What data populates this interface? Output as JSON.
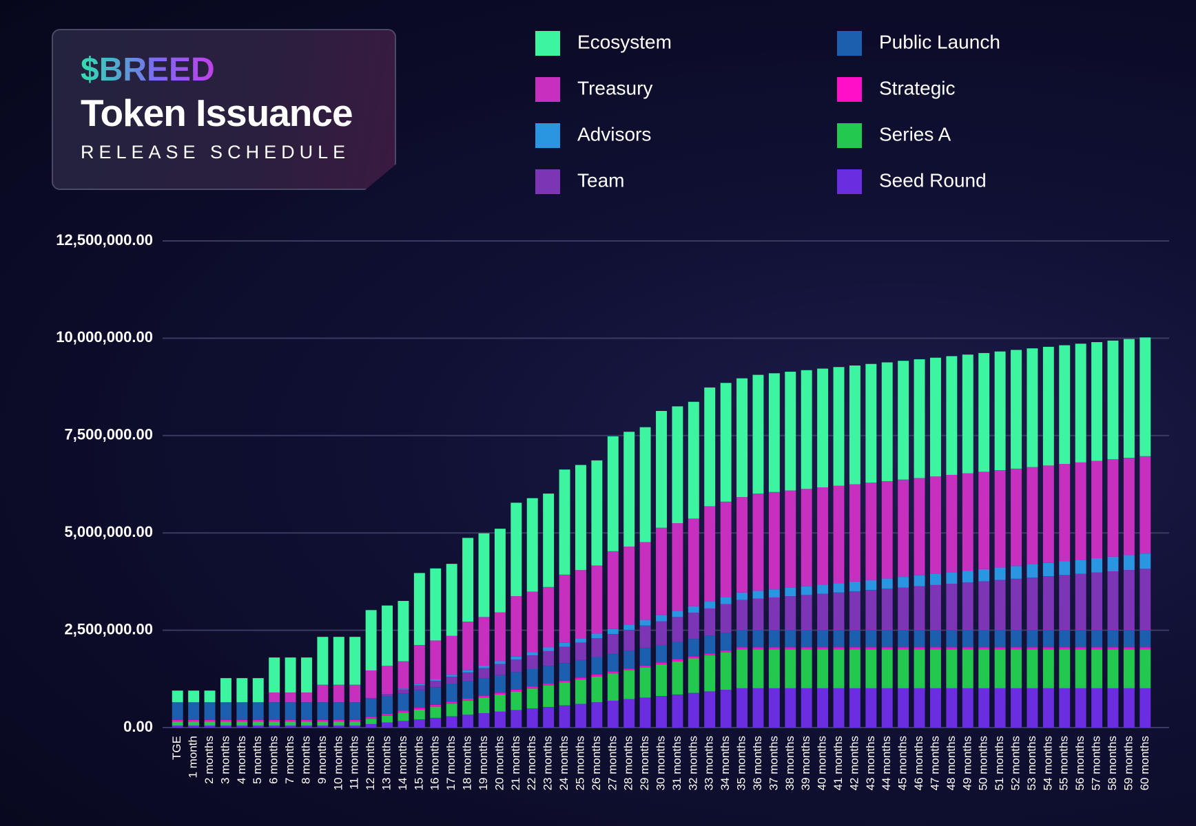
{
  "chart_data": {
    "type": "stacked-bar",
    "brand": "$BREED",
    "title": "Token Issuance",
    "subtitle": "RELEASE SCHEDULE",
    "categories": [
      "TGE",
      "1 month",
      "2 months",
      "3 months",
      "4 months",
      "5 months",
      "6 months",
      "7 months",
      "8 months",
      "9 months",
      "10 months",
      "11 months",
      "12 months",
      "13 months",
      "14 months",
      "15 months",
      "16 months",
      "17 months",
      "18 months",
      "19 months",
      "20 months",
      "21 months",
      "22 months",
      "23 months",
      "24 months",
      "25 months",
      "26 months",
      "27 months",
      "28 months",
      "29 months",
      "30 months",
      "31 months",
      "32 months",
      "33 months",
      "34 months",
      "35 months",
      "36 months",
      "37 months",
      "38 months",
      "39 months",
      "40 months",
      "41 months",
      "42 months",
      "43 months",
      "44 months",
      "45 months",
      "46 months",
      "47 months",
      "48 months",
      "49 months",
      "50 months",
      "51 months",
      "52 months",
      "53 months",
      "54 months",
      "55 months",
      "56 months",
      "57 months",
      "58 months",
      "59 months",
      "60 months"
    ],
    "series": [
      {
        "name": "Ecosystem",
        "color": "#3df5a0",
        "values": [
          300000,
          300000,
          300000,
          620000,
          620000,
          620000,
          900000,
          900000,
          900000,
          1230000,
          1230000,
          1230000,
          1550000,
          1550000,
          1550000,
          1850000,
          1850000,
          1850000,
          2150000,
          2150000,
          2150000,
          2400000,
          2400000,
          2400000,
          2700000,
          2700000,
          2700000,
          2950000,
          2950000,
          2950000,
          3000000,
          3000000,
          3000000,
          3050000,
          3050000,
          3050000,
          3050000,
          3050000,
          3050000,
          3050000,
          3050000,
          3050000,
          3050000,
          3050000,
          3050000,
          3050000,
          3050000,
          3050000,
          3050000,
          3050000,
          3050000,
          3050000,
          3050000,
          3050000,
          3050000,
          3050000,
          3050000,
          3050000,
          3050000,
          3050000,
          3050000
        ]
      },
      {
        "name": "Treasury",
        "color": "#c72fbf",
        "values": [
          0,
          0,
          0,
          0,
          0,
          0,
          250000,
          250000,
          250000,
          450000,
          450000,
          450000,
          700000,
          700000,
          700000,
          1000000,
          1000000,
          1000000,
          1250000,
          1250000,
          1250000,
          1550000,
          1550000,
          1550000,
          1750000,
          1750000,
          1750000,
          2000000,
          2000000,
          2000000,
          2250000,
          2250000,
          2250000,
          2450000,
          2450000,
          2450000,
          2500000,
          2500000,
          2500000,
          2500000,
          2500000,
          2500000,
          2500000,
          2500000,
          2500000,
          2500000,
          2500000,
          2500000,
          2500000,
          2500000,
          2500000,
          2500000,
          2500000,
          2500000,
          2500000,
          2500000,
          2500000,
          2500000,
          2500000,
          2500000,
          2500000
        ]
      },
      {
        "name": "Advisors",
        "color": "#2a95e0",
        "values": [
          0,
          0,
          0,
          0,
          0,
          0,
          0,
          0,
          0,
          0,
          0,
          0,
          8000,
          16000,
          24000,
          32000,
          40000,
          48000,
          56000,
          64000,
          72000,
          80000,
          88000,
          96000,
          104000,
          112000,
          120000,
          128000,
          136000,
          144000,
          152000,
          160000,
          168000,
          176000,
          184000,
          192000,
          200000,
          208000,
          216000,
          224000,
          232000,
          240000,
          248000,
          256000,
          264000,
          272000,
          280000,
          288000,
          296000,
          304000,
          312000,
          320000,
          328000,
          336000,
          344000,
          352000,
          360000,
          368000,
          376000,
          384000,
          392000
        ]
      },
      {
        "name": "Team",
        "color": "#7b35b5",
        "values": [
          0,
          0,
          0,
          0,
          0,
          0,
          0,
          0,
          0,
          0,
          0,
          0,
          32000,
          64000,
          96000,
          128000,
          160000,
          192000,
          224000,
          256000,
          288000,
          320000,
          352000,
          384000,
          416000,
          448000,
          480000,
          512000,
          544000,
          576000,
          608000,
          640000,
          672000,
          704000,
          736000,
          768000,
          800000,
          832000,
          864000,
          896000,
          928000,
          960000,
          992000,
          1024000,
          1056000,
          1088000,
          1120000,
          1152000,
          1184000,
          1216000,
          1248000,
          1280000,
          1312000,
          1344000,
          1376000,
          1408000,
          1440000,
          1472000,
          1504000,
          1536000,
          1568000
        ]
      },
      {
        "name": "Public Launch",
        "color": "#1b5fae",
        "values": [
          450000,
          450000,
          450000,
          450000,
          450000,
          450000,
          450000,
          450000,
          450000,
          450000,
          450000,
          450000,
          450000,
          450000,
          450000,
          450000,
          450000,
          450000,
          450000,
          450000,
          450000,
          450000,
          450000,
          450000,
          450000,
          450000,
          450000,
          450000,
          450000,
          450000,
          450000,
          450000,
          450000,
          450000,
          450000,
          450000,
          450000,
          450000,
          450000,
          450000,
          450000,
          450000,
          450000,
          450000,
          450000,
          450000,
          450000,
          450000,
          450000,
          450000,
          450000,
          450000,
          450000,
          450000,
          450000,
          450000,
          450000,
          450000,
          450000,
          450000,
          450000
        ]
      },
      {
        "name": "Strategic",
        "color": "#ff10c8",
        "values": [
          50000,
          50000,
          50000,
          50000,
          50000,
          50000,
          50000,
          50000,
          50000,
          50000,
          50000,
          50000,
          50000,
          50000,
          50000,
          50000,
          50000,
          50000,
          50000,
          50000,
          50000,
          50000,
          50000,
          50000,
          50000,
          50000,
          50000,
          50000,
          50000,
          50000,
          50000,
          50000,
          50000,
          50000,
          50000,
          50000,
          50000,
          50000,
          50000,
          50000,
          50000,
          50000,
          50000,
          50000,
          50000,
          50000,
          50000,
          50000,
          50000,
          50000,
          50000,
          50000,
          50000,
          50000,
          50000,
          50000,
          50000,
          50000,
          50000,
          50000,
          50000
        ]
      },
      {
        "name": "Series A",
        "color": "#22c94e",
        "values": [
          100000,
          100000,
          100000,
          100000,
          100000,
          100000,
          100000,
          100000,
          100000,
          100000,
          100000,
          100000,
          137500,
          175000,
          212500,
          250000,
          287500,
          325000,
          362500,
          400000,
          437500,
          475000,
          512500,
          550000,
          587500,
          625000,
          662500,
          700000,
          737500,
          775000,
          812500,
          850000,
          887500,
          925000,
          962500,
          1000000,
          1000000,
          1000000,
          1000000,
          1000000,
          1000000,
          1000000,
          1000000,
          1000000,
          1000000,
          1000000,
          1000000,
          1000000,
          1000000,
          1000000,
          1000000,
          1000000,
          1000000,
          1000000,
          1000000,
          1000000,
          1000000,
          1000000,
          1000000,
          1000000,
          1000000
        ]
      },
      {
        "name": "Seed Round",
        "color": "#6a2ee0",
        "values": [
          50000,
          50000,
          50000,
          50000,
          50000,
          50000,
          50000,
          50000,
          50000,
          50000,
          50000,
          50000,
          90000,
          130000,
          170000,
          210000,
          250000,
          290000,
          330000,
          370000,
          410000,
          450000,
          490000,
          530000,
          570000,
          610000,
          650000,
          690000,
          730000,
          770000,
          810000,
          850000,
          890000,
          930000,
          970000,
          1010000,
          1010000,
          1010000,
          1010000,
          1010000,
          1010000,
          1010000,
          1010000,
          1010000,
          1010000,
          1010000,
          1010000,
          1010000,
          1010000,
          1010000,
          1010000,
          1010000,
          1010000,
          1010000,
          1010000,
          1010000,
          1010000,
          1010000,
          1010000,
          1010000,
          1010000
        ]
      }
    ],
    "ylim": [
      0,
      12500000
    ],
    "yticks": [
      {
        "value": 0,
        "label": "0.00"
      },
      {
        "value": 2500000,
        "label": "2,500,000.00"
      },
      {
        "value": 5000000,
        "label": "5,000,000.00"
      },
      {
        "value": 7500000,
        "label": "7,500,000.00"
      },
      {
        "value": 10000000,
        "label": "10,000,000.00"
      },
      {
        "value": 12500000,
        "label": "12,500,000.00"
      }
    ],
    "grid": true
  }
}
